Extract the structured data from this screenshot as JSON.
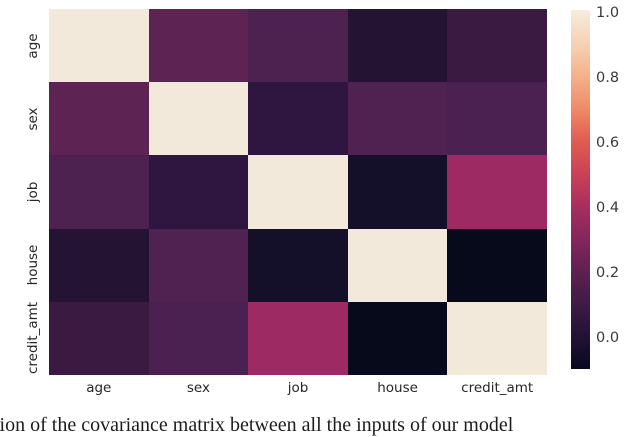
{
  "chart_data": {
    "type": "heatmap",
    "title": "",
    "xlabel": "",
    "ylabel": "",
    "colormap": "rocket",
    "categories": [
      "age",
      "sex",
      "job",
      "house",
      "credit_amt"
    ],
    "values": [
      [
        1.0,
        0.2,
        0.16,
        0.03,
        0.1
      ],
      [
        0.2,
        1.0,
        0.06,
        0.17,
        0.15
      ],
      [
        0.16,
        0.06,
        1.0,
        -0.03,
        0.38
      ],
      [
        0.03,
        0.17,
        -0.03,
        1.0,
        -0.09
      ],
      [
        0.1,
        0.15,
        0.38,
        -0.09,
        1.0
      ]
    ],
    "cell_colors": [
      [
        "#f3e9da",
        "#5d2453",
        "#4d2150",
        "#241333",
        "#3a1a41"
      ],
      [
        "#5d2453",
        "#f3e9da",
        "#2e1640",
        "#4f2252",
        "#4a2150"
      ],
      [
        "#4d2150",
        "#2e1640",
        "#f3e9da",
        "#141029",
        "#9e2a63"
      ],
      [
        "#241333",
        "#4f2252",
        "#141029",
        "#f3e9da",
        "#060a1b"
      ],
      [
        "#3a1a41",
        "#4a2150",
        "#9e2a63",
        "#060a1b",
        "#f3e9da"
      ]
    ],
    "colorbar": {
      "tick_labels": [
        "1.0",
        "0.8",
        "0.6",
        "0.4",
        "0.2",
        "0.0"
      ],
      "range_top": 1.0,
      "range_bottom": -0.1,
      "gradient_stops": [
        {
          "pos": 0,
          "color": "#f7ecdf"
        },
        {
          "pos": 9,
          "color": "#f6d3b6"
        },
        {
          "pos": 18.6,
          "color": "#f4b189"
        },
        {
          "pos": 27.6,
          "color": "#ef8a66"
        },
        {
          "pos": 36.7,
          "color": "#e05b51"
        },
        {
          "pos": 45.7,
          "color": "#cb4156"
        },
        {
          "pos": 54.7,
          "color": "#a82e5f"
        },
        {
          "pos": 63.7,
          "color": "#85265b"
        },
        {
          "pos": 72.8,
          "color": "#5e2151"
        },
        {
          "pos": 81.8,
          "color": "#3e1b45"
        },
        {
          "pos": 90.8,
          "color": "#221235"
        },
        {
          "pos": 100,
          "color": "#07091f"
        }
      ]
    },
    "legend_position": "right-colorbar",
    "grid": false
  },
  "caption": {
    "text": "tion of the covariance matrix between all the inputs of our model"
  }
}
